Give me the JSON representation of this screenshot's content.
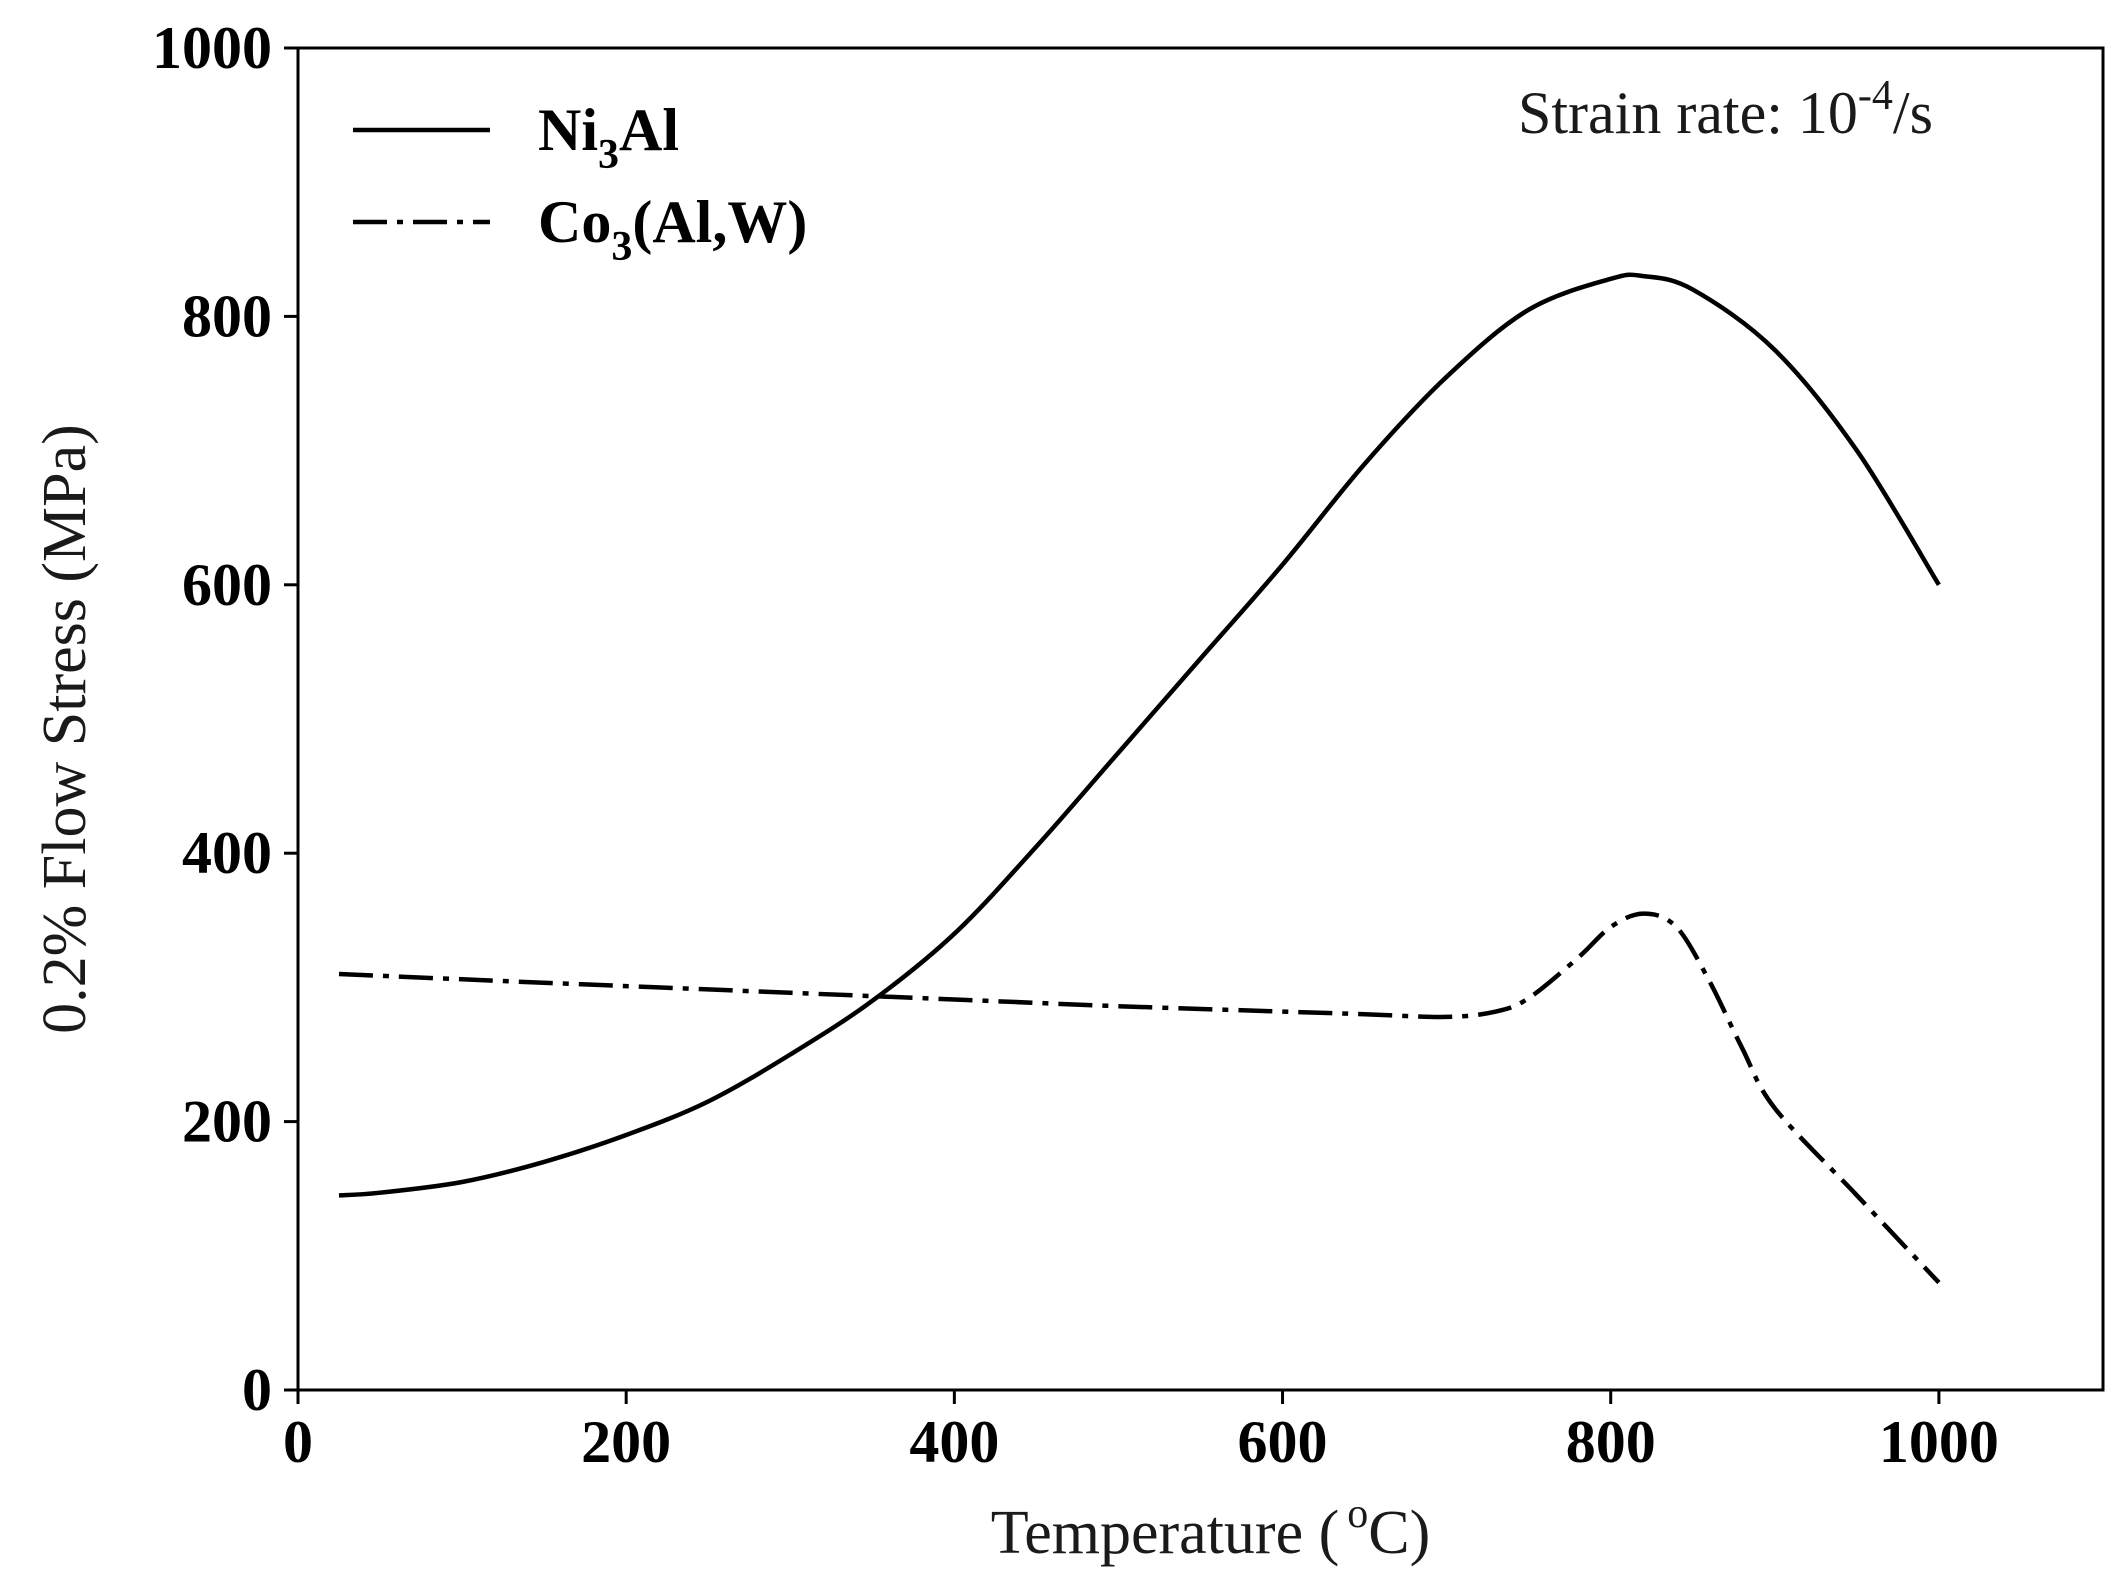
{
  "chart_data": {
    "type": "line",
    "title": "",
    "xlabel": "Temperature ( °C)",
    "xlabel_main": "Temperature (",
    "xlabel_sup": "o",
    "xlabel_unit": "C)",
    "ylabel": "0.2% Flow Stress (MPa)",
    "xlim": [
      0,
      1100
    ],
    "ylim": [
      0,
      1000
    ],
    "xticks": [
      0,
      200,
      400,
      600,
      800,
      1000
    ],
    "yticks": [
      0,
      200,
      400,
      600,
      800,
      1000
    ],
    "xtick_labels": [
      "0",
      "200",
      "400",
      "600",
      "800",
      "1000"
    ],
    "ytick_labels": [
      "0",
      "200",
      "400",
      "600",
      "800",
      "1000"
    ],
    "annotation": {
      "text_main": "Strain rate: 10",
      "text_sup": "-4",
      "text_tail": "/s"
    },
    "series": [
      {
        "name": "Ni3Al",
        "legend_main": "Ni",
        "legend_sub": "3",
        "legend_tail": "Al",
        "style": "solid",
        "color": "#000000",
        "x": [
          25,
          50,
          100,
          150,
          200,
          250,
          300,
          350,
          400,
          450,
          500,
          550,
          600,
          650,
          700,
          750,
          800,
          820,
          850,
          900,
          950,
          1000
        ],
        "y": [
          145,
          147,
          155,
          170,
          190,
          215,
          250,
          290,
          340,
          405,
          475,
          545,
          615,
          690,
          755,
          805,
          828,
          830,
          820,
          775,
          700,
          600
        ]
      },
      {
        "name": "Co3(Al,W)",
        "legend_main": "Co",
        "legend_sub": "3",
        "legend_tail": "(Al,W)",
        "style": "dashdot",
        "color": "#000000",
        "x": [
          25,
          100,
          200,
          300,
          400,
          500,
          600,
          650,
          700,
          730,
          750,
          780,
          800,
          820,
          840,
          860,
          880,
          900,
          950,
          1000
        ],
        "y": [
          310,
          306,
          301,
          296,
          291,
          286,
          282,
          280,
          278,
          282,
          292,
          322,
          345,
          355,
          345,
          305,
          255,
          210,
          145,
          80
        ]
      }
    ]
  }
}
